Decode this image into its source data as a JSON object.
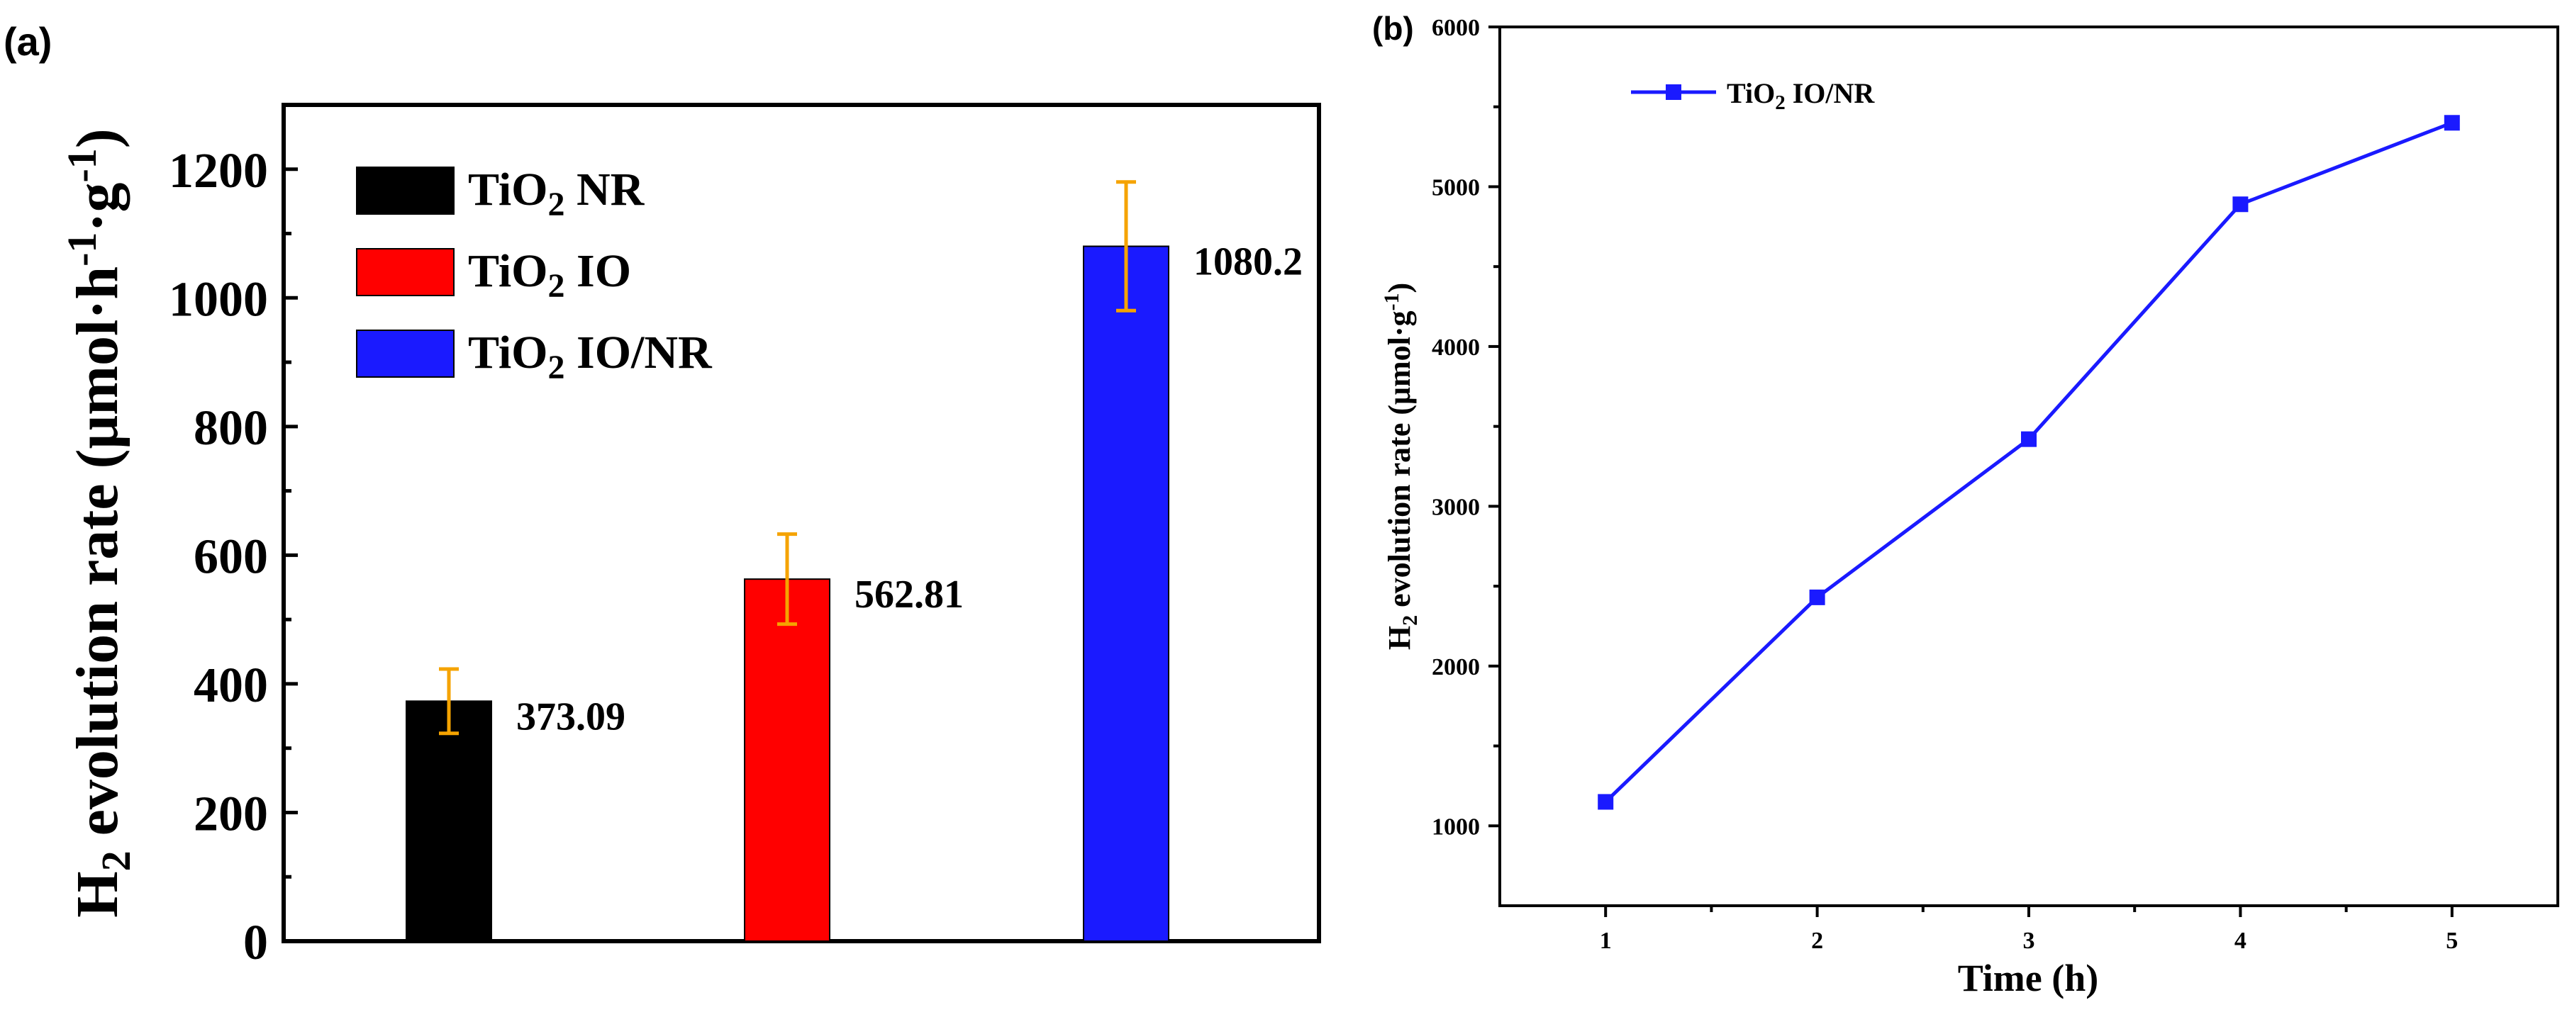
{
  "panels": [
    {
      "label": "(a)"
    },
    {
      "label": "(b)"
    }
  ],
  "chart_data": [
    {
      "type": "bar",
      "title": "",
      "ylabel": {
        "main": "H",
        "sub": "2",
        "rest": " evolution rate (μmol·h",
        "sup1": "-1",
        "dot": "·g",
        "sup2": "-1",
        "close": ")"
      },
      "ylim": [
        0,
        1300
      ],
      "yticks": [
        0,
        200,
        400,
        600,
        800,
        1000,
        1200
      ],
      "categories": [
        "TiO2 NR",
        "TiO2 IO",
        "TiO2 IO/NR"
      ],
      "values": [
        373.09,
        562.81,
        1080.2
      ],
      "value_labels": [
        "373.09",
        "562.81",
        "1080.2"
      ],
      "errors": [
        50,
        70,
        100
      ],
      "colors": [
        "#000000",
        "#ff0000",
        "#1a1aff"
      ],
      "error_color": "#f5a300",
      "legend": {
        "position": "top-left",
        "items": [
          {
            "base": "TiO",
            "sub": "2",
            "rest": " NR",
            "color": "#000000"
          },
          {
            "base": "TiO",
            "sub": "2",
            "rest": " IO",
            "color": "#ff0000"
          },
          {
            "base": "TiO",
            "sub": "2",
            "rest": " IO/NR",
            "color": "#1a1aff"
          }
        ]
      }
    },
    {
      "type": "line",
      "title": "",
      "xlabel": "Time (h)",
      "ylabel": {
        "main": "H",
        "sub": "2",
        "rest": " evolution rate (μmol·g",
        "sup": "-1",
        "close": ")"
      },
      "x": [
        1,
        2,
        3,
        4,
        5
      ],
      "xlim": [
        0.5,
        5.5
      ],
      "ylim": [
        500,
        6000
      ],
      "yticks": [
        1000,
        2000,
        3000,
        4000,
        5000,
        6000
      ],
      "series": [
        {
          "name": "TiO2 IO/NR",
          "values": [
            1150,
            2430,
            3420,
            4890,
            5400
          ],
          "color": "#1a1aff"
        }
      ],
      "legend": {
        "position": "top-left",
        "items": [
          {
            "base": "TiO",
            "sub": "2",
            "rest": " IO/NR",
            "color": "#1a1aff"
          }
        ]
      }
    }
  ]
}
